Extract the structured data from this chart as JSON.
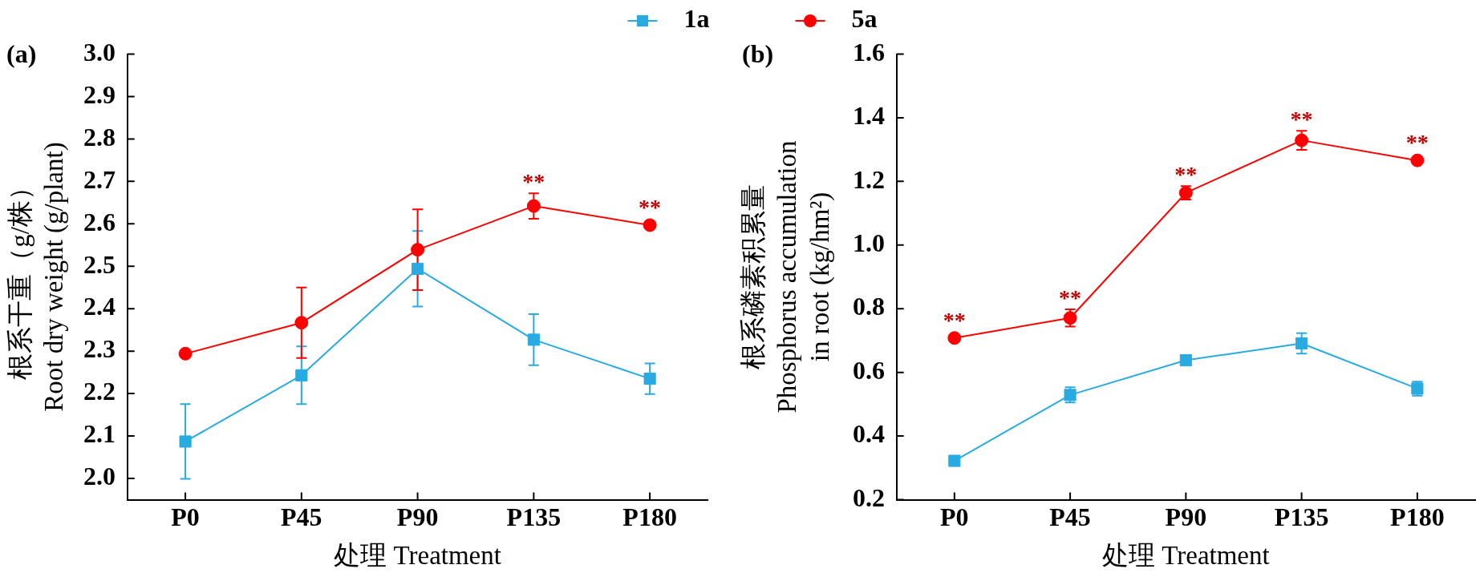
{
  "chart_data": [
    {
      "type": "line",
      "title": "(a)",
      "xlabel": "处理 Treatment",
      "ylabel": "根系干重（g/株）\nRoot dry weight (g/plant)",
      "categories": [
        "P0",
        "P45",
        "P90",
        "P135",
        "P180"
      ],
      "series": [
        {
          "name": "1a",
          "color": "#29abe2",
          "marker": "square",
          "values": [
            2.087,
            2.243,
            2.494,
            2.327,
            2.235
          ],
          "errors": [
            0.088,
            0.068,
            0.089,
            0.06,
            0.036
          ]
        },
        {
          "name": "5a",
          "color": "#ff0000",
          "marker": "circle",
          "values": [
            2.294,
            2.367,
            2.539,
            2.642,
            2.597
          ],
          "errors": [
            null,
            0.083,
            0.095,
            0.03,
            null
          ]
        }
      ],
      "ylim": [
        1.95,
        3.0
      ],
      "yticks": [
        {
          "value": 2,
          "label": "2.0"
        },
        2.1,
        2.2,
        2.3,
        2.4,
        2.5,
        2.6,
        2.7,
        2.8,
        2.9,
        {
          "value": 3,
          "label": "3.0"
        }
      ],
      "annotations": [
        {
          "text": "**",
          "x": "P135",
          "y": 2.642
        },
        {
          "text": "**",
          "x": "P180",
          "y": 2.597
        }
      ],
      "legend": "top"
    },
    {
      "type": "line",
      "title": "(b)",
      "xlabel": "处理 Treatment",
      "ylabel": "根系磷素积累量\nPhosphorus accumulation\nin root (kg/hm²)",
      "categories": [
        "P0",
        "P45",
        "P90",
        "P135",
        "P180"
      ],
      "series": [
        {
          "color": "#29abe2",
          "marker": "square",
          "values": [
            0.322,
            0.529,
            0.638,
            0.691,
            0.549
          ],
          "errors": [
            null,
            0.024,
            null,
            0.032,
            0.022
          ]
        },
        {
          "color": "#ff0000",
          "marker": "circle",
          "values": [
            0.708,
            0.771,
            1.164,
            1.329,
            1.266
          ],
          "errors": [
            null,
            0.027,
            0.021,
            0.03,
            null
          ]
        }
      ],
      "ylim": [
        0.2,
        1.6
      ],
      "yticks": [
        0.2,
        0.4,
        0.6,
        0.8,
        {
          "value": 1,
          "label": "1.0"
        },
        1.2,
        1.4,
        1.6
      ],
      "annotations": [
        {
          "text": "**",
          "x": "P0",
          "y": 0.708
        },
        {
          "text": "**",
          "x": "P45",
          "y": 0.771
        },
        {
          "text": "**",
          "x": "P90",
          "y": 1.164
        },
        {
          "text": "**",
          "x": "P135",
          "y": 1.329
        },
        {
          "text": "**",
          "x": "P180",
          "y": 1.266
        }
      ]
    }
  ]
}
